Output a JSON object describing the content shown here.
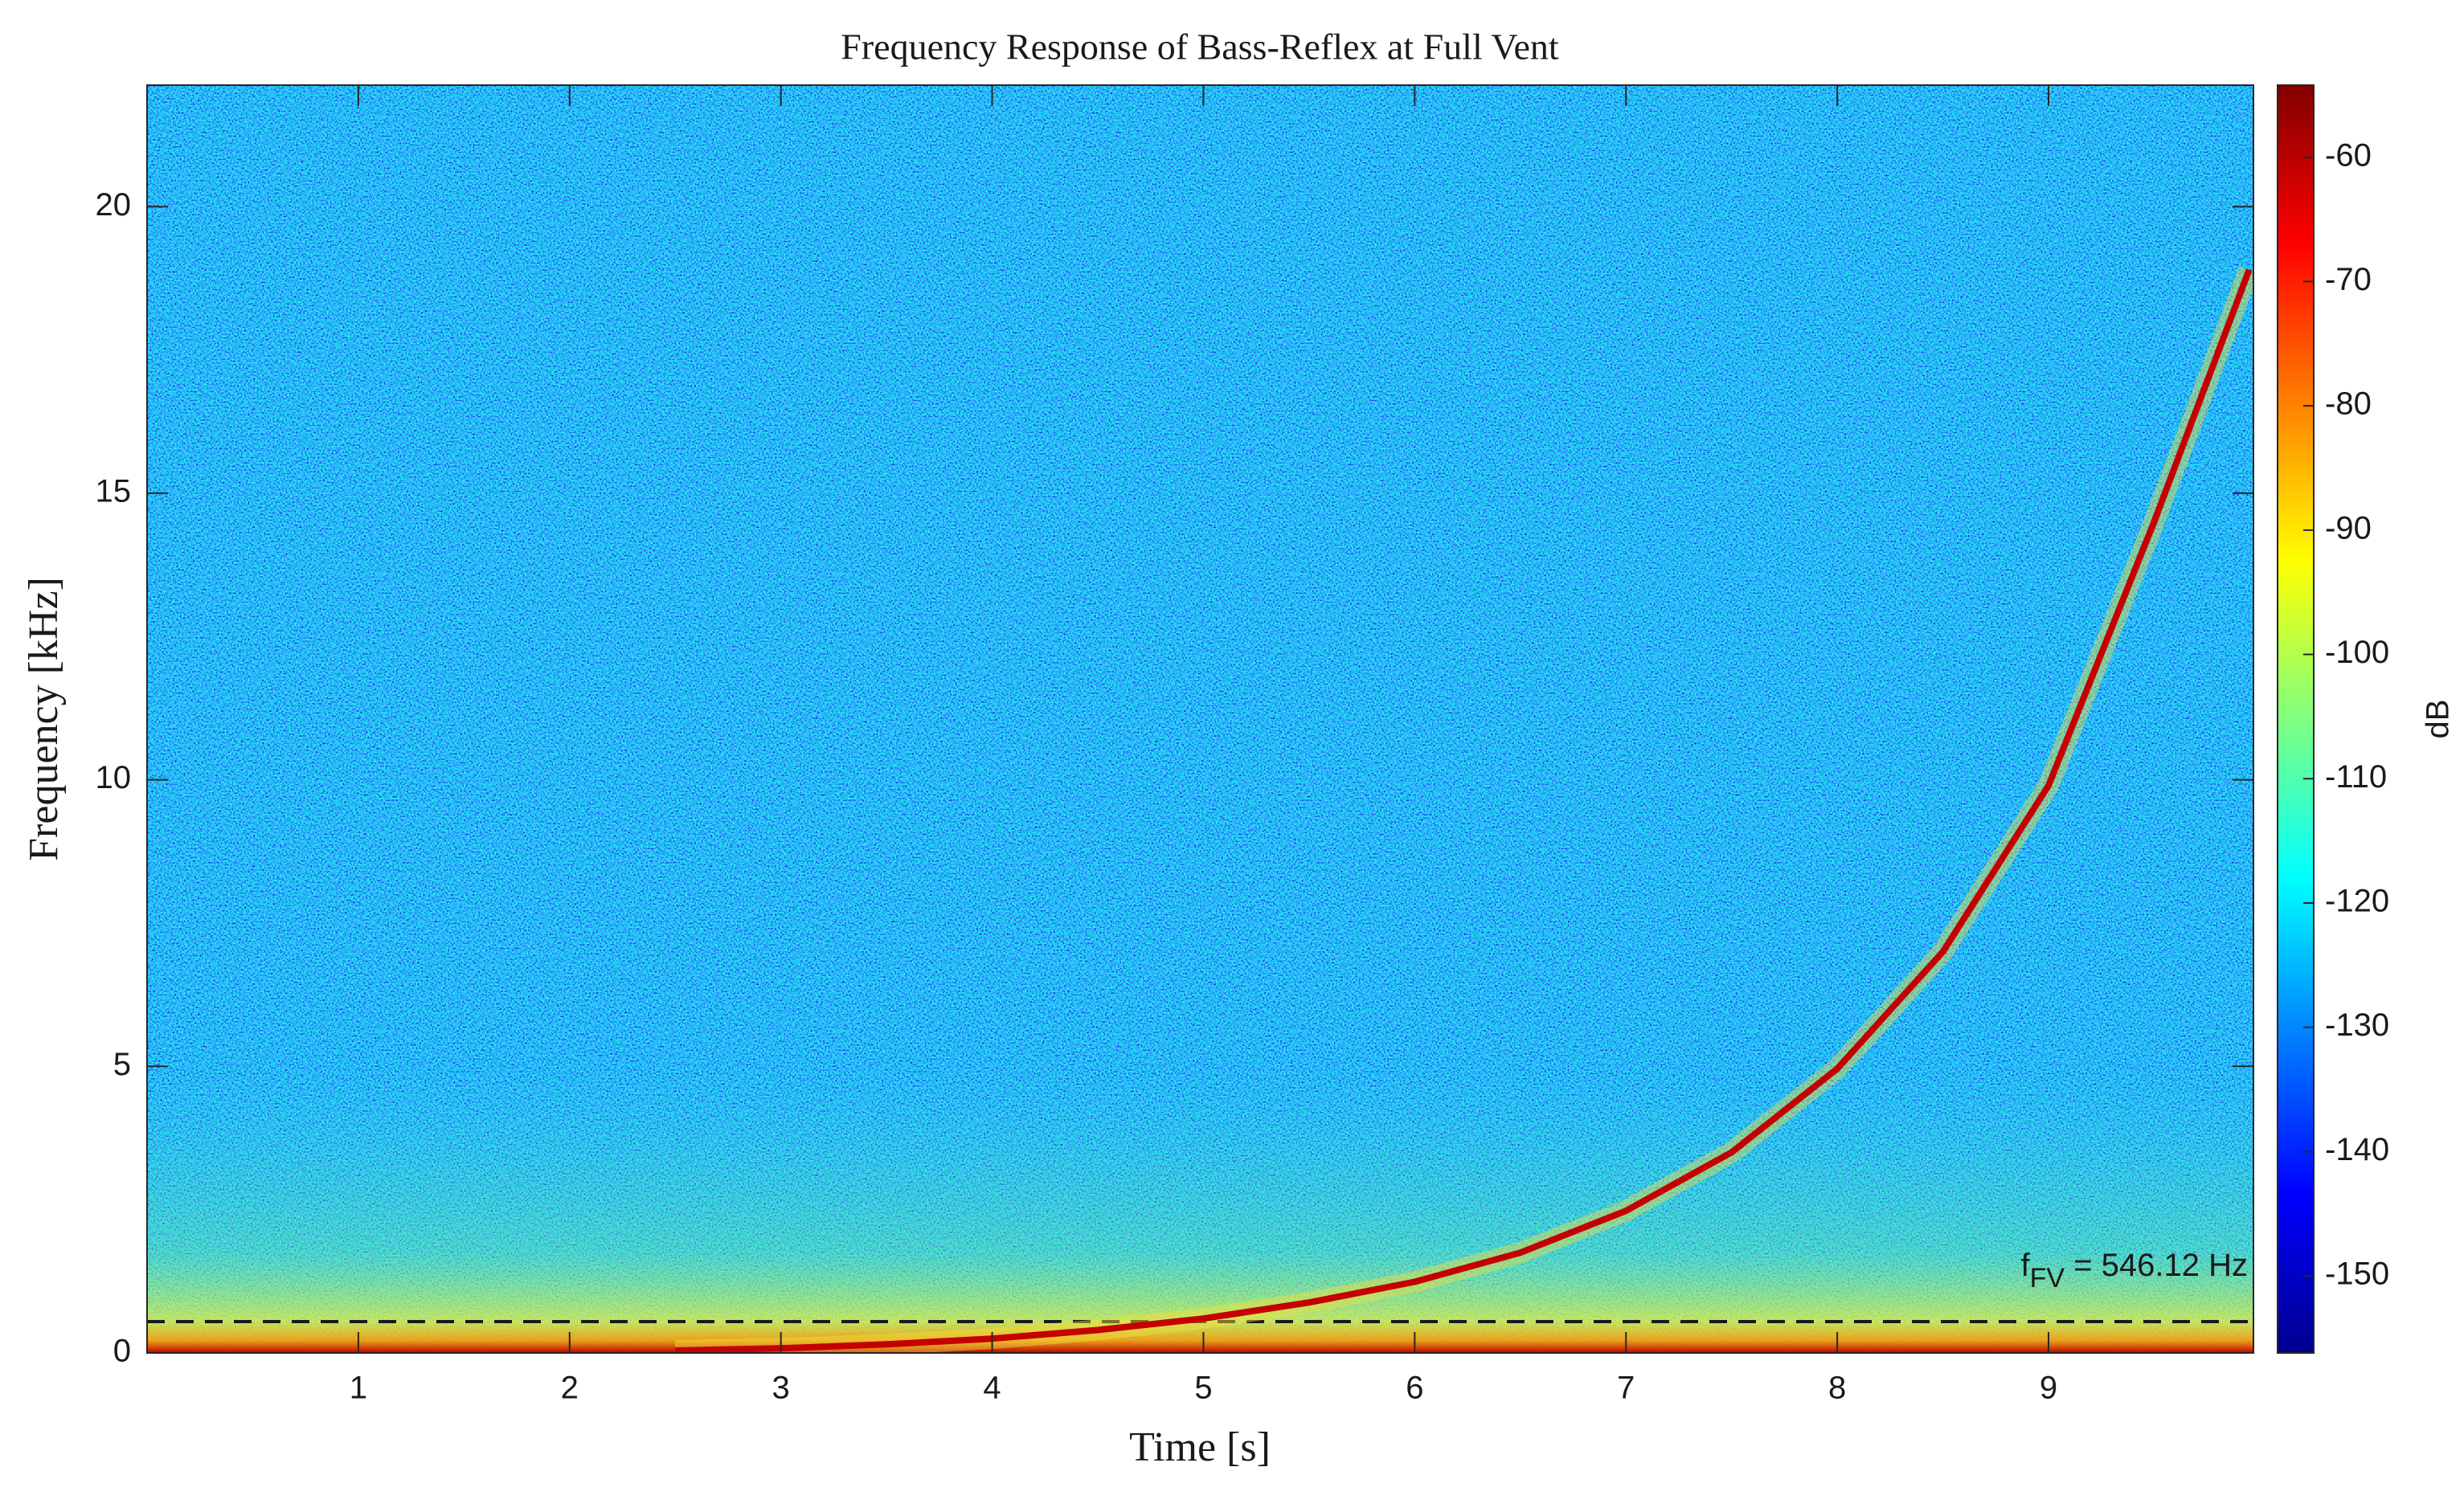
{
  "chart_data": {
    "type": "spectrogram",
    "title": "Frequency Response of Bass-Reflex at Full Vent",
    "xlabel": "Time [s]",
    "ylabel": "Frequency [kHz]",
    "xlim": [
      0,
      9.97
    ],
    "ylim": [
      0,
      22.12
    ],
    "xticks": [
      1,
      2,
      3,
      4,
      5,
      6,
      7,
      8,
      9
    ],
    "yticks": [
      0,
      5,
      10,
      15,
      20
    ],
    "series": [
      {
        "color": "#c40000",
        "x": [
          2.5,
          3,
          3.5,
          4,
          4.5,
          5,
          5.5,
          6,
          6.5,
          7,
          7.5,
          8,
          8.5,
          9,
          9.5,
          9.95
        ],
        "values": [
          0.04,
          0.08,
          0.15,
          0.25,
          0.4,
          0.6,
          0.88,
          1.24,
          1.75,
          2.48,
          3.5,
          4.96,
          7.0,
          9.9,
          14.5,
          18.9
        ]
      }
    ],
    "reference_line": {
      "value": 0.54612,
      "label_parts": [
        "f",
        "FV",
        " = 546.12 Hz"
      ]
    },
    "colorbar": {
      "label": "dB",
      "clim": [
        -156.2,
        -54.2
      ],
      "ticks": [
        -60,
        -70,
        -80,
        -90,
        -100,
        -110,
        -120,
        -130,
        -140,
        -150
      ],
      "colormap": [
        "#00008f",
        "#0000ff",
        "#0080ff",
        "#00ffff",
        "#80ff80",
        "#ffff00",
        "#ff8000",
        "#ff0000",
        "#800000"
      ]
    }
  }
}
